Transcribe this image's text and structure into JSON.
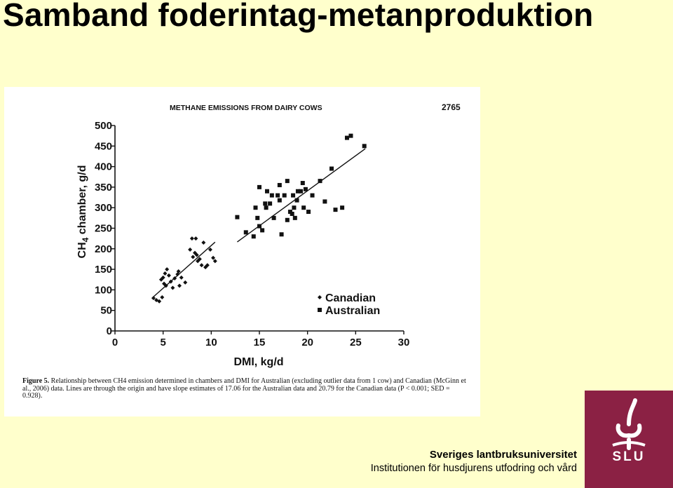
{
  "slide": {
    "title": "Samband foderintag-metanproduktion"
  },
  "figure": {
    "header": "METHANE EMISSIONS FROM DAIRY COWS",
    "page_number": "2765",
    "caption_label": "Figure 5.",
    "caption_text": "Relationship between CH4 emission determined in chambers and DMI for Australian (excluding outlier data from 1 cow) and Canadian (McGinn et al., 2006) data. Lines are through the origin and have slope estimates of 17.06 for the Australian data and 20.79 for the Canadian data (P < 0.001; SED = 0.928)."
  },
  "chart_data": {
    "type": "scatter",
    "xlabel": "DMI, kg/d",
    "ylabel": "CH4 chamber, g/d",
    "xlim": [
      0,
      30
    ],
    "ylim": [
      0,
      500
    ],
    "xticks": [
      0,
      5,
      10,
      15,
      20,
      25,
      30
    ],
    "yticks": [
      0,
      50,
      100,
      150,
      200,
      250,
      300,
      350,
      400,
      450,
      500
    ],
    "legend_position": "lower-right",
    "series": [
      {
        "name": "Canadian",
        "marker": "diamond",
        "color": "#111111",
        "points": [
          [
            4.0,
            80
          ],
          [
            4.3,
            75
          ],
          [
            4.6,
            72
          ],
          [
            4.9,
            82
          ],
          [
            4.8,
            125
          ],
          [
            5.0,
            130
          ],
          [
            5.1,
            115
          ],
          [
            5.2,
            140
          ],
          [
            5.3,
            110
          ],
          [
            5.4,
            150
          ],
          [
            5.6,
            135
          ],
          [
            5.8,
            120
          ],
          [
            6.0,
            105
          ],
          [
            6.2,
            128
          ],
          [
            6.5,
            138
          ],
          [
            6.6,
            145
          ],
          [
            6.7,
            110
          ],
          [
            6.9,
            130
          ],
          [
            7.3,
            118
          ],
          [
            7.8,
            198
          ],
          [
            8.0,
            225
          ],
          [
            8.1,
            180
          ],
          [
            8.3,
            190
          ],
          [
            8.4,
            225
          ],
          [
            8.5,
            185
          ],
          [
            8.6,
            170
          ],
          [
            8.8,
            175
          ],
          [
            9.0,
            160
          ],
          [
            9.2,
            215
          ],
          [
            9.4,
            155
          ],
          [
            9.6,
            160
          ],
          [
            9.9,
            198
          ],
          [
            10.2,
            178
          ],
          [
            10.4,
            170
          ]
        ]
      },
      {
        "name": "Australian",
        "marker": "square",
        "color": "#111111",
        "points": [
          [
            12.7,
            277
          ],
          [
            13.6,
            240
          ],
          [
            14.4,
            230
          ],
          [
            14.6,
            300
          ],
          [
            14.8,
            275
          ],
          [
            15.0,
            255
          ],
          [
            15.0,
            350
          ],
          [
            15.3,
            245
          ],
          [
            15.6,
            310
          ],
          [
            15.7,
            300
          ],
          [
            15.8,
            340
          ],
          [
            16.1,
            310
          ],
          [
            16.3,
            330
          ],
          [
            16.5,
            275
          ],
          [
            16.9,
            330
          ],
          [
            17.1,
            318
          ],
          [
            17.1,
            355
          ],
          [
            17.3,
            235
          ],
          [
            17.6,
            330
          ],
          [
            17.9,
            365
          ],
          [
            17.9,
            270
          ],
          [
            18.2,
            290
          ],
          [
            18.4,
            285
          ],
          [
            18.5,
            330
          ],
          [
            18.6,
            300
          ],
          [
            18.7,
            275
          ],
          [
            18.9,
            318
          ],
          [
            19.0,
            340
          ],
          [
            19.3,
            340
          ],
          [
            19.5,
            360
          ],
          [
            19.6,
            300
          ],
          [
            19.8,
            345
          ],
          [
            20.1,
            290
          ],
          [
            20.5,
            330
          ],
          [
            21.3,
            365
          ],
          [
            21.8,
            315
          ],
          [
            22.5,
            395
          ],
          [
            22.9,
            295
          ],
          [
            23.6,
            300
          ],
          [
            24.1,
            470
          ],
          [
            24.5,
            475
          ],
          [
            25.9,
            450
          ]
        ]
      }
    ],
    "lines": [
      {
        "series": "Canadian",
        "slope": 20.79,
        "x_range": [
          4,
          10.4
        ]
      },
      {
        "series": "Australian",
        "slope": 17.06,
        "x_range": [
          12.7,
          26
        ]
      }
    ]
  },
  "footer": {
    "university": "Sveriges lantbruksuniversitet",
    "institution": "Institutionen för husdjurens utfodring och vård",
    "logo_text": "SLU"
  },
  "colors": {
    "background": "#ffffcc",
    "logo_background": "#8b2144",
    "text": "#000000"
  }
}
